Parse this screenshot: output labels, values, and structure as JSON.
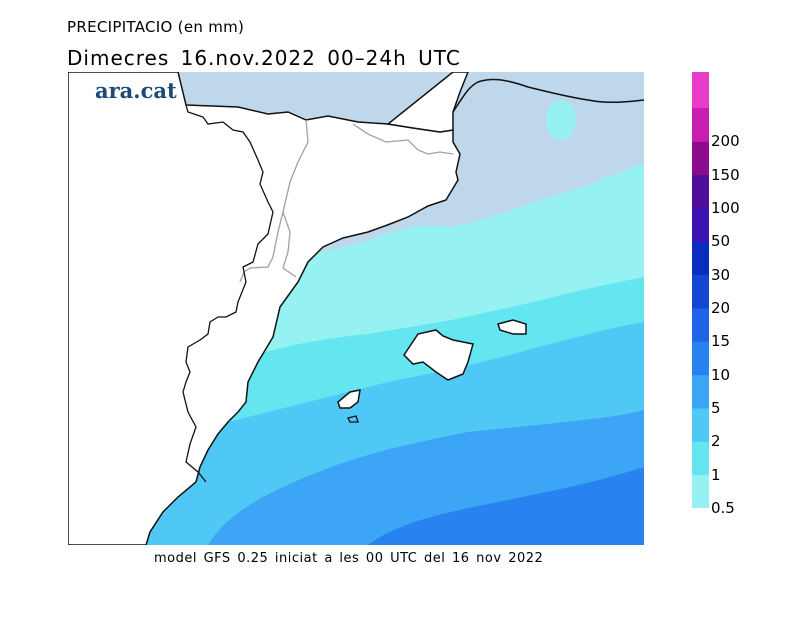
{
  "title": "PRECIPITACIO (en mm)",
  "subtitle": "Dimecres  16.nov.2022 00–24h UTC",
  "logo": "ara.cat",
  "footer": "model GFS 0.25 iniciat a les 00 UTC del 16 nov 2022",
  "legend": {
    "labels": [
      "0.5",
      "1",
      "2",
      "5",
      "10",
      "15",
      "20",
      "30",
      "50",
      "100",
      "150",
      "200"
    ],
    "colors": [
      "#96f2f2",
      "#64e6f0",
      "#50c8f5",
      "#3ca5f5",
      "#2882f0",
      "#1e64e6",
      "#1446d2",
      "#0a2dbe",
      "#3c14b4",
      "#500f9b",
      "#8c0a8c",
      "#c81eb4"
    ],
    "top_color": "#e63cc8"
  },
  "map_colors": {
    "sea": "#bed7ea",
    "land": "#ffffff",
    "coast": "#111111",
    "border": "#a0a0a0"
  }
}
